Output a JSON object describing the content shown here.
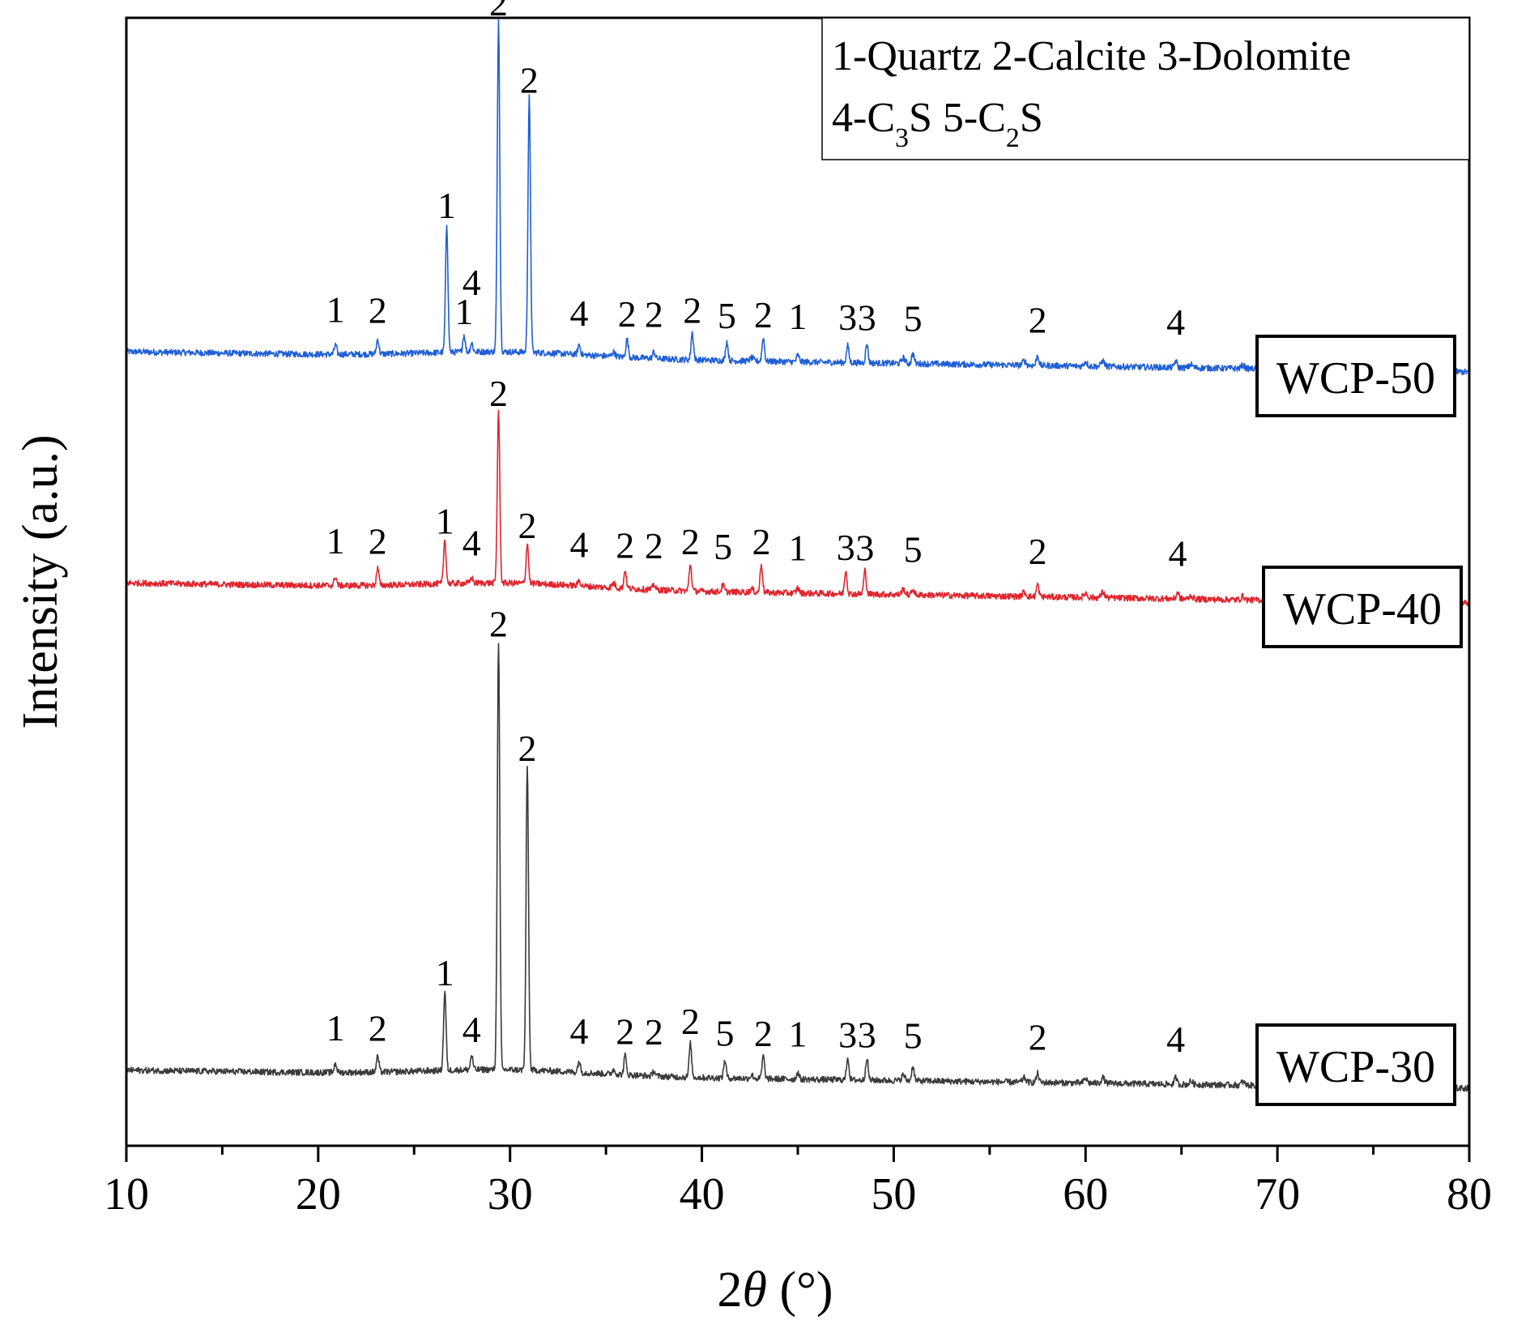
{
  "chart_data": {
    "type": "line",
    "title": "",
    "xlabel_main": "2",
    "xlabel_symbol": "θ",
    "xlabel_unit": " (°)",
    "ylabel": "Intensity (a.u.)",
    "xlim": [
      10,
      80
    ],
    "ylim": [
      0,
      100
    ],
    "xticks": [
      10,
      20,
      30,
      40,
      50,
      60,
      70,
      80
    ],
    "grid": false,
    "legend": {
      "position": "top-right",
      "line1": "1-Quartz  2-Calcite  3-Dolomite",
      "line2": [
        {
          "text": "4-C",
          "sub": false
        },
        {
          "text": "3",
          "sub": true
        },
        {
          "text": "S  5-C",
          "sub": false
        },
        {
          "text": "2",
          "sub": true
        },
        {
          "text": "S",
          "sub": false
        }
      ]
    },
    "series": [
      {
        "name": "WCP-50",
        "color": "#1f5fd6",
        "baseline_start": 70.4,
        "baseline_end": 68.6,
        "peaks": [
          {
            "x": 20.9,
            "h": 0.8,
            "label": "1"
          },
          {
            "x": 23.1,
            "h": 1.3,
            "label": "2"
          },
          {
            "x": 26.7,
            "h": 11.4,
            "label": "1"
          },
          {
            "x": 27.6,
            "h": 1.5,
            "label": "1"
          },
          {
            "x": 28.0,
            "h": 0.8,
            "label": "4"
          },
          {
            "x": 29.4,
            "h": 29.4,
            "label": "2"
          },
          {
            "x": 31.0,
            "h": 22.6,
            "label": "2"
          },
          {
            "x": 33.6,
            "h": 0.9,
            "label": "4"
          },
          {
            "x": 36.1,
            "h": 1.6,
            "label": "2"
          },
          {
            "x": 37.5,
            "h": 0.6,
            "label": "2"
          },
          {
            "x": 39.5,
            "h": 2.4,
            "label": "2"
          },
          {
            "x": 41.3,
            "h": 1.7,
            "label": "5"
          },
          {
            "x": 43.2,
            "h": 2.1,
            "label": "2"
          },
          {
            "x": 45.0,
            "h": 0.6,
            "label": "1"
          },
          {
            "x": 47.6,
            "h": 1.5,
            "label": "3"
          },
          {
            "x": 48.6,
            "h": 1.7,
            "label": "3"
          },
          {
            "x": 51.0,
            "h": 0.9,
            "label": "5"
          },
          {
            "x": 57.5,
            "h": 0.9,
            "label": "2"
          },
          {
            "x": 64.7,
            "h": 0.6,
            "label": "4"
          }
        ]
      },
      {
        "name": "WCP-40",
        "color": "#e0252e",
        "baseline_start": 49.9,
        "baseline_end": 48.1,
        "peaks": [
          {
            "x": 20.9,
            "h": 0.8,
            "label": "1"
          },
          {
            "x": 23.1,
            "h": 1.5,
            "label": "2"
          },
          {
            "x": 26.6,
            "h": 3.9,
            "label": "1"
          },
          {
            "x": 28.0,
            "h": 0.5,
            "label": "4"
          },
          {
            "x": 29.4,
            "h": 15.3,
            "label": "2"
          },
          {
            "x": 30.9,
            "h": 3.6,
            "label": "2"
          },
          {
            "x": 33.6,
            "h": 0.5,
            "label": "4"
          },
          {
            "x": 36.0,
            "h": 1.6,
            "label": "2"
          },
          {
            "x": 37.5,
            "h": 0.5,
            "label": "2"
          },
          {
            "x": 39.4,
            "h": 2.4,
            "label": "2"
          },
          {
            "x": 41.1,
            "h": 0.6,
            "label": "5"
          },
          {
            "x": 43.1,
            "h": 2.5,
            "label": "2"
          },
          {
            "x": 45.0,
            "h": 0.5,
            "label": "1"
          },
          {
            "x": 47.5,
            "h": 2.1,
            "label": "3"
          },
          {
            "x": 48.5,
            "h": 2.1,
            "label": "3"
          },
          {
            "x": 51.0,
            "h": 0.5,
            "label": "5"
          },
          {
            "x": 57.5,
            "h": 1.1,
            "label": "2"
          },
          {
            "x": 64.8,
            "h": 0.6,
            "label": "4"
          }
        ]
      },
      {
        "name": "WCP-30",
        "color": "#3a3a3a",
        "baseline_start": 6.7,
        "baseline_end": 5.1,
        "peaks": [
          {
            "x": 20.9,
            "h": 0.8,
            "label": "1"
          },
          {
            "x": 23.1,
            "h": 1.4,
            "label": "2"
          },
          {
            "x": 26.6,
            "h": 7.0,
            "label": "1"
          },
          {
            "x": 28.0,
            "h": 1.3,
            "label": "4"
          },
          {
            "x": 29.4,
            "h": 38.0,
            "label": "2"
          },
          {
            "x": 30.9,
            "h": 27.0,
            "label": "2"
          },
          {
            "x": 33.6,
            "h": 1.0,
            "label": "4"
          },
          {
            "x": 36.0,
            "h": 1.7,
            "label": "2"
          },
          {
            "x": 37.5,
            "h": 0.5,
            "label": "2"
          },
          {
            "x": 39.4,
            "h": 3.0,
            "label": "2"
          },
          {
            "x": 41.2,
            "h": 1.6,
            "label": "5"
          },
          {
            "x": 43.2,
            "h": 2.0,
            "label": "2"
          },
          {
            "x": 45.0,
            "h": 0.6,
            "label": "1"
          },
          {
            "x": 47.6,
            "h": 2.0,
            "label": "3"
          },
          {
            "x": 48.6,
            "h": 2.0,
            "label": "3"
          },
          {
            "x": 51.0,
            "h": 1.3,
            "label": "5"
          },
          {
            "x": 57.5,
            "h": 0.8,
            "label": "2"
          },
          {
            "x": 64.7,
            "h": 0.6,
            "label": "4"
          }
        ]
      }
    ]
  }
}
